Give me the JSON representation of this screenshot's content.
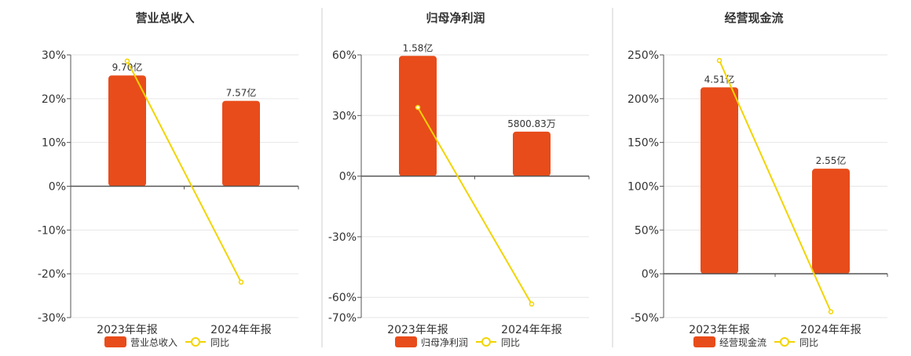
{
  "colors": {
    "bar": "#e84c1a",
    "line": "#f2d400",
    "axis": "#555555",
    "grid": "#e6e6e6",
    "divider": "#cfcfcf",
    "text": "#333333"
  },
  "legend": {
    "yoy_label": "同比"
  },
  "chart_data": [
    {
      "type": "bar",
      "title": "营业总收入",
      "categories": [
        "2023年年报",
        "2024年年报"
      ],
      "series": [
        {
          "name": "营业总收入",
          "type": "bar",
          "values": [
            25.3,
            19.5
          ],
          "labels": [
            "9.70亿",
            "7.57亿"
          ]
        },
        {
          "name": "同比",
          "type": "line",
          "values": [
            28.6,
            -21.9
          ]
        }
      ],
      "yticks": [
        "30%",
        "20%",
        "10%",
        "0%",
        "-10%",
        "-20%",
        "-30%"
      ],
      "ylim": [
        -30,
        30
      ],
      "grid": true,
      "legend_position": "bottom"
    },
    {
      "type": "bar",
      "title": "归母净利润",
      "categories": [
        "2023年年报",
        "2024年年报"
      ],
      "series": [
        {
          "name": "归母净利润",
          "type": "bar",
          "values": [
            59.5,
            22
          ],
          "labels": [
            "1.58亿",
            "5800.83万"
          ]
        },
        {
          "name": "同比",
          "type": "line",
          "values": [
            34,
            -63.3
          ]
        }
      ],
      "yticks": [
        "60%",
        "30%",
        "0%",
        "-30%",
        "-60%",
        "-70%"
      ],
      "ylim": [
        -70,
        60
      ],
      "grid": true,
      "legend_position": "bottom"
    },
    {
      "type": "bar",
      "title": "经营现金流",
      "categories": [
        "2023年年报",
        "2024年年报"
      ],
      "series": [
        {
          "name": "经营现金流",
          "type": "bar",
          "values": [
            213,
            120
          ],
          "labels": [
            "4.51亿",
            "2.55亿"
          ]
        },
        {
          "name": "同比",
          "type": "line",
          "values": [
            243.6,
            -43.4
          ]
        }
      ],
      "yticks": [
        "250%",
        "200%",
        "150%",
        "100%",
        "50%",
        "0%",
        "-50%"
      ],
      "ylim": [
        -50,
        250
      ],
      "grid": true,
      "legend_position": "bottom"
    }
  ]
}
